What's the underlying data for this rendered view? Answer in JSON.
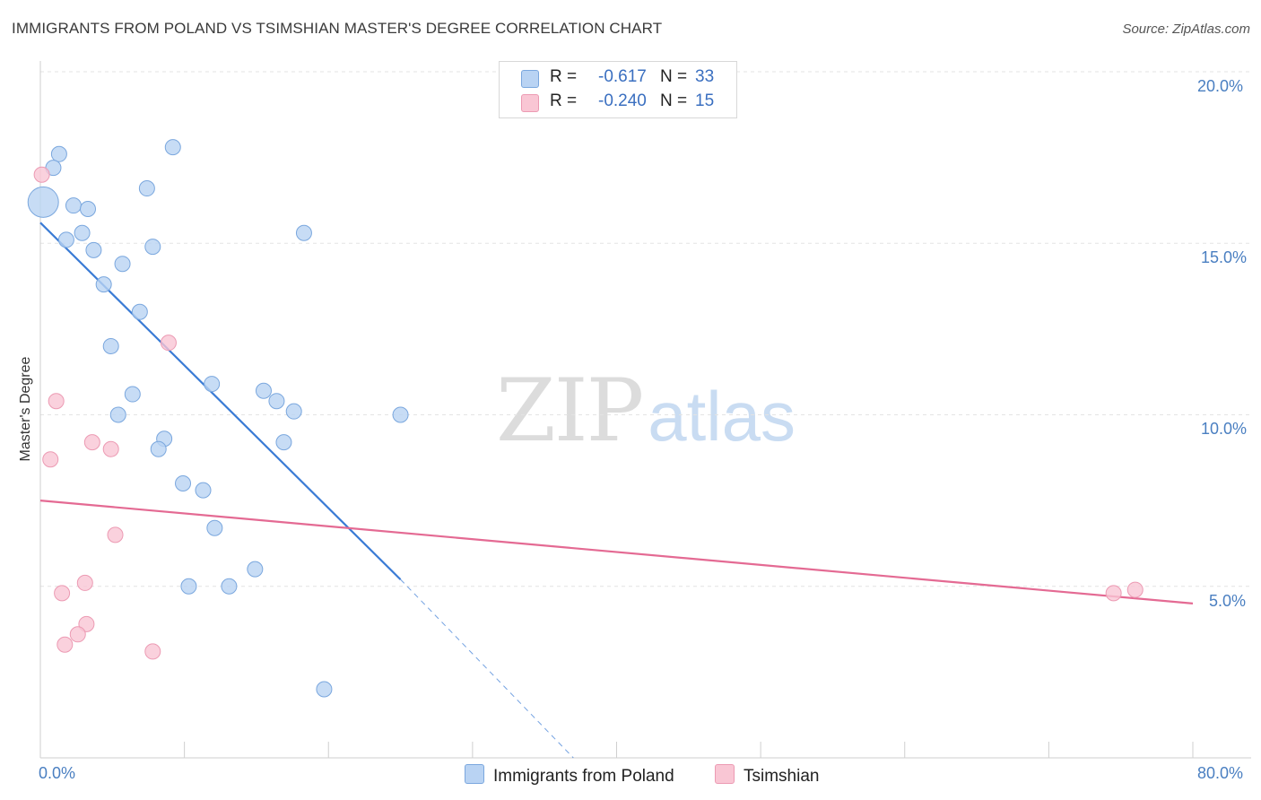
{
  "header": {
    "title": "IMMIGRANTS FROM POLAND VS TSIMSHIAN MASTER'S DEGREE CORRELATION CHART",
    "source": "Source: ZipAtlas.com"
  },
  "watermark": {
    "zip": "ZIP",
    "atlas": "atlas"
  },
  "legend": {
    "rows": [
      {
        "r_label": "R =",
        "r_value": "-0.617",
        "n_label": "N =",
        "n_value": "33",
        "color": "#b9d3f3",
        "border": "#7aa7de"
      },
      {
        "r_label": "R =",
        "r_value": "-0.240",
        "n_label": "N =",
        "n_value": "15",
        "color": "#f9c6d4",
        "border": "#ec9ab3"
      }
    ]
  },
  "bottom_legend": [
    {
      "label": "Immigrants from Poland",
      "color": "#b9d3f3",
      "border": "#7aa7de"
    },
    {
      "label": "Tsimshian",
      "color": "#f9c6d4",
      "border": "#ec9ab3"
    }
  ],
  "chart_data": {
    "type": "scatter",
    "title": "IMMIGRANTS FROM POLAND VS TSIMSHIAN MASTER'S DEGREE CORRELATION CHART",
    "xlabel": "",
    "ylabel": "Master's Degree",
    "xlim": [
      0,
      80
    ],
    "ylim": [
      0,
      20
    ],
    "x_tick_labels": [
      "0.0%",
      "80.0%"
    ],
    "y_ticks": [
      5,
      10,
      15,
      20
    ],
    "y_tick_labels": [
      "5.0%",
      "10.0%",
      "15.0%",
      "20.0%"
    ],
    "grid": true,
    "series": [
      {
        "name": "Immigrants from Poland",
        "color": "#b9d3f3",
        "edge": "#7aa7de",
        "line_color": "#3a7bd5",
        "R": -0.617,
        "N": 33,
        "points": [
          {
            "x": 0.2,
            "y": 16.2,
            "big": true
          },
          {
            "x": 1.3,
            "y": 17.6
          },
          {
            "x": 0.9,
            "y": 17.2
          },
          {
            "x": 9.2,
            "y": 17.8
          },
          {
            "x": 7.4,
            "y": 16.6
          },
          {
            "x": 2.3,
            "y": 16.1
          },
          {
            "x": 3.3,
            "y": 16.0
          },
          {
            "x": 1.8,
            "y": 15.1
          },
          {
            "x": 2.9,
            "y": 15.3
          },
          {
            "x": 3.7,
            "y": 14.8
          },
          {
            "x": 7.8,
            "y": 14.9
          },
          {
            "x": 18.3,
            "y": 15.3
          },
          {
            "x": 5.7,
            "y": 14.4
          },
          {
            "x": 4.4,
            "y": 13.8
          },
          {
            "x": 6.9,
            "y": 13.0
          },
          {
            "x": 4.9,
            "y": 12.0
          },
          {
            "x": 11.9,
            "y": 10.9
          },
          {
            "x": 6.4,
            "y": 10.6
          },
          {
            "x": 15.5,
            "y": 10.7
          },
          {
            "x": 16.4,
            "y": 10.4
          },
          {
            "x": 5.4,
            "y": 10.0
          },
          {
            "x": 17.6,
            "y": 10.1
          },
          {
            "x": 25.0,
            "y": 10.0
          },
          {
            "x": 8.6,
            "y": 9.3
          },
          {
            "x": 8.2,
            "y": 9.0
          },
          {
            "x": 16.9,
            "y": 9.2
          },
          {
            "x": 9.9,
            "y": 8.0
          },
          {
            "x": 11.3,
            "y": 7.8
          },
          {
            "x": 12.1,
            "y": 6.7
          },
          {
            "x": 14.9,
            "y": 5.5
          },
          {
            "x": 10.3,
            "y": 5.0
          },
          {
            "x": 13.1,
            "y": 5.0
          },
          {
            "x": 19.7,
            "y": 2.0
          }
        ],
        "trend": {
          "x0": 0,
          "y0": 15.6,
          "x1": 25.0,
          "y1": 5.2,
          "x_dash_end": 37.0,
          "y_dash_end": 0.0
        }
      },
      {
        "name": "Tsimshian",
        "color": "#f9c6d4",
        "edge": "#ec9ab3",
        "line_color": "#e46a93",
        "R": -0.24,
        "N": 15,
        "points": [
          {
            "x": 0.1,
            "y": 17.0
          },
          {
            "x": 8.9,
            "y": 12.1
          },
          {
            "x": 1.1,
            "y": 10.4
          },
          {
            "x": 3.6,
            "y": 9.2
          },
          {
            "x": 4.9,
            "y": 9.0
          },
          {
            "x": 0.7,
            "y": 8.7
          },
          {
            "x": 5.2,
            "y": 6.5
          },
          {
            "x": 3.1,
            "y": 5.1
          },
          {
            "x": 1.5,
            "y": 4.8
          },
          {
            "x": 3.2,
            "y": 3.9
          },
          {
            "x": 2.6,
            "y": 3.6
          },
          {
            "x": 1.7,
            "y": 3.3
          },
          {
            "x": 7.8,
            "y": 3.1
          },
          {
            "x": 74.5,
            "y": 4.8
          },
          {
            "x": 76.0,
            "y": 4.9
          }
        ],
        "trend": {
          "x0": 0,
          "y0": 7.5,
          "x1": 80.0,
          "y1": 4.5
        }
      }
    ]
  }
}
